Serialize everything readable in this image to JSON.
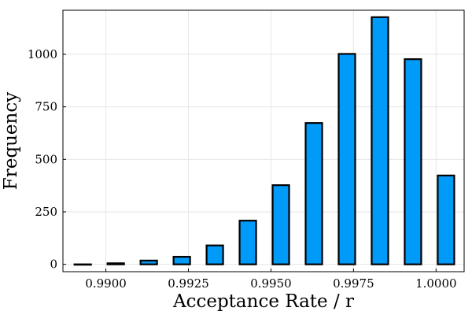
{
  "chart_data": {
    "type": "bar",
    "xlabel": "Acceptance Rate / r",
    "ylabel": "Frequency",
    "bar_color": "#009af9",
    "edge_color": "#000000",
    "grid": true,
    "legend": false,
    "xlim": [
      0.9887,
      1.00085
    ],
    "ylim": [
      -35,
      1210
    ],
    "xticks": [
      0.99,
      0.9925,
      0.995,
      0.9975,
      1.0
    ],
    "xtick_labels": [
      "0.9900",
      "0.9925",
      "0.9950",
      "0.9975",
      "1.0000"
    ],
    "yticks": [
      0,
      250,
      500,
      750,
      1000
    ],
    "ytick_labels": [
      "0",
      "250",
      "500",
      "750",
      "1000"
    ],
    "bars": [
      {
        "x": 0.9893,
        "value": 0
      },
      {
        "x": 0.9903,
        "value": 5
      },
      {
        "x": 0.9913,
        "value": 18
      },
      {
        "x": 0.9923,
        "value": 36
      },
      {
        "x": 0.9933,
        "value": 90
      },
      {
        "x": 0.9943,
        "value": 208
      },
      {
        "x": 0.9953,
        "value": 377
      },
      {
        "x": 0.9963,
        "value": 673
      },
      {
        "x": 0.9973,
        "value": 1002
      },
      {
        "x": 0.9983,
        "value": 1177
      },
      {
        "x": 0.9993,
        "value": 977
      },
      {
        "x": 1.0003,
        "value": 423
      }
    ],
    "bar_width_data": 0.0005
  }
}
